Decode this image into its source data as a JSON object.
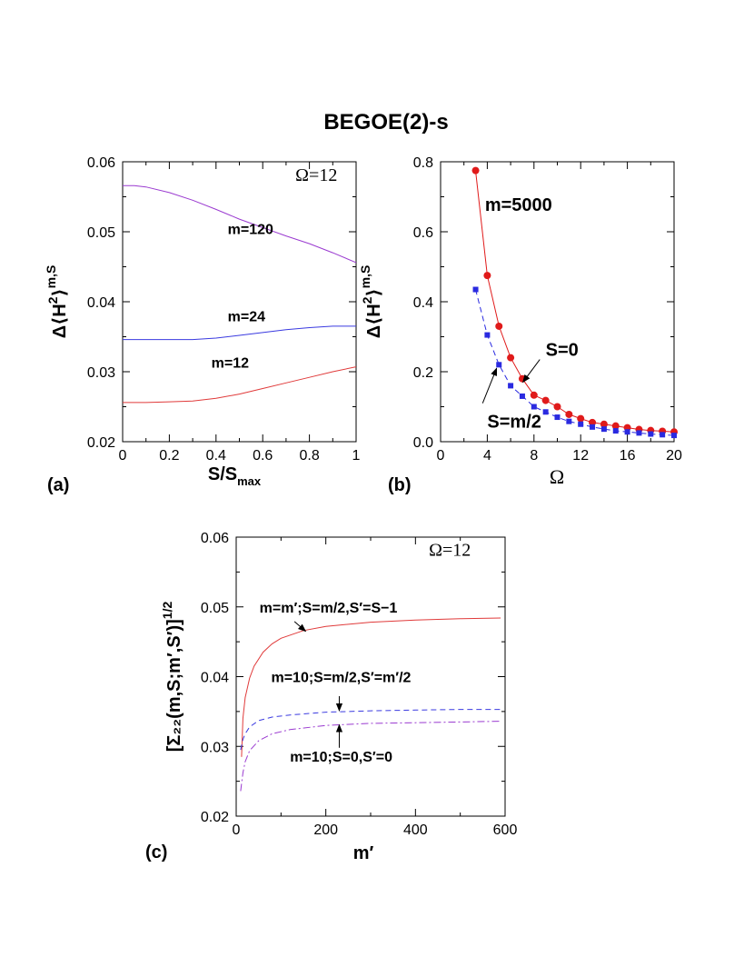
{
  "figure": {
    "title": "BEGOE(2)-s"
  },
  "chart_data": [
    {
      "id": "a",
      "type": "line",
      "panel_label": "(a)",
      "annotation": "Ω=12",
      "ylabel_text": "Δ⟨H",
      "ylabel_sup": "2",
      "ylabel_close": "⟩",
      "ylabel_supsup": "m,S",
      "xlabel_text": "S/S",
      "xlabel_sub": "max",
      "xlim": [
        0,
        1
      ],
      "ylim": [
        0.02,
        0.06
      ],
      "xticks": [
        0,
        0.2,
        0.4,
        0.6,
        0.8,
        1
      ],
      "xticklabels": [
        "0",
        "0.2",
        "0.4",
        "0.6",
        "0.8",
        "1"
      ],
      "yticks": [
        0.02,
        0.03,
        0.04,
        0.05,
        0.06
      ],
      "yticklabels": [
        "0.02",
        "0.03",
        "0.04",
        "0.05",
        "0.06"
      ],
      "series": [
        {
          "name": "m=120",
          "color": "#9a3ad0",
          "style": "solid",
          "x": [
            0,
            0.05,
            0.1,
            0.2,
            0.3,
            0.4,
            0.5,
            0.6,
            0.7,
            0.8,
            0.9,
            1.0
          ],
          "y": [
            0.0566,
            0.0566,
            0.0564,
            0.0556,
            0.0545,
            0.0532,
            0.0518,
            0.0506,
            0.0494,
            0.0483,
            0.047,
            0.0456
          ]
        },
        {
          "name": "m=24",
          "color": "#3a3ae0",
          "style": "solid",
          "x": [
            0,
            0.1,
            0.2,
            0.3,
            0.4,
            0.5,
            0.6,
            0.7,
            0.8,
            0.9,
            1.0
          ],
          "y": [
            0.0346,
            0.0346,
            0.0346,
            0.0346,
            0.0348,
            0.0352,
            0.0356,
            0.036,
            0.0363,
            0.0365,
            0.0365
          ]
        },
        {
          "name": "m=12",
          "color": "#e03a3a",
          "style": "solid",
          "x": [
            0,
            0.1,
            0.2,
            0.3,
            0.4,
            0.5,
            0.6,
            0.7,
            0.8,
            0.9,
            1.0
          ],
          "y": [
            0.0256,
            0.0256,
            0.0257,
            0.0258,
            0.0262,
            0.0268,
            0.0276,
            0.0284,
            0.0292,
            0.03,
            0.0307
          ]
        }
      ],
      "labels": [
        {
          "text": "m=120",
          "x": 0.45,
          "y": 0.0497
        },
        {
          "text": "m=24",
          "x": 0.45,
          "y": 0.0372
        },
        {
          "text": "m=12",
          "x": 0.38,
          "y": 0.0306
        }
      ]
    },
    {
      "id": "b",
      "type": "line",
      "panel_label": "(b)",
      "annotation": "m=5000",
      "ylabel_text": "Δ⟨H",
      "ylabel_sup": "2",
      "ylabel_close": "⟩",
      "ylabel_supsup": "m,S",
      "xlabel_text": "Ω",
      "xlim": [
        0,
        20
      ],
      "ylim": [
        0,
        0.8
      ],
      "xticks": [
        0,
        4,
        8,
        12,
        16,
        20
      ],
      "xticklabels": [
        "0",
        "4",
        "8",
        "12",
        "16",
        "20"
      ],
      "yticks": [
        0,
        0.2,
        0.4,
        0.6,
        0.8
      ],
      "yticklabels": [
        "0.0",
        "0.2",
        "0.4",
        "0.6",
        "0.8"
      ],
      "series": [
        {
          "name": "S=0",
          "color": "#e01a1a",
          "style": "solid",
          "marker": "circle",
          "x": [
            3,
            4,
            5,
            6,
            7,
            8,
            9,
            10,
            11,
            12,
            13,
            14,
            15,
            16,
            17,
            18,
            19,
            20
          ],
          "y": [
            0.775,
            0.475,
            0.33,
            0.24,
            0.18,
            0.133,
            0.118,
            0.1,
            0.078,
            0.066,
            0.055,
            0.05,
            0.045,
            0.04,
            0.035,
            0.032,
            0.03,
            0.028
          ]
        },
        {
          "name": "S=m/2",
          "color": "#2a2ae0",
          "style": "dashed",
          "marker": "square",
          "x": [
            3,
            4,
            5,
            6,
            7,
            8,
            9,
            10,
            11,
            12,
            13,
            14,
            15,
            16,
            17,
            18,
            19,
            20
          ],
          "y": [
            0.435,
            0.305,
            0.22,
            0.16,
            0.13,
            0.1,
            0.085,
            0.07,
            0.058,
            0.05,
            0.042,
            0.036,
            0.031,
            0.028,
            0.025,
            0.022,
            0.02,
            0.018
          ]
        }
      ],
      "labels": [
        {
          "text": "S=0",
          "x": 9.0,
          "y": 0.245
        },
        {
          "text": "S=m/2",
          "x": 4.0,
          "y": 0.04
        }
      ],
      "arrows": [
        {
          "from": [
            8.5,
            0.235
          ],
          "to": [
            7.05,
            0.17
          ]
        },
        {
          "from": [
            3.6,
            0.11
          ],
          "to": [
            4.8,
            0.21
          ]
        }
      ]
    },
    {
      "id": "c",
      "type": "line",
      "panel_label": "(c)",
      "annotation": "Ω=12",
      "ylabel": "[Σ₂₂(m,S;m′,S′)]",
      "ylabel_sup": "1/2",
      "xlabel": "m′",
      "xlim": [
        0,
        600
      ],
      "ylim": [
        0.02,
        0.06
      ],
      "xticks": [
        0,
        200,
        400,
        600
      ],
      "xticklabels": [
        "0",
        "200",
        "400",
        "600"
      ],
      "yticks": [
        0.02,
        0.03,
        0.04,
        0.05,
        0.06
      ],
      "yticklabels": [
        "0.02",
        "0.03",
        "0.04",
        "0.05",
        "0.06"
      ],
      "series": [
        {
          "name": "m=m′;S=m/2,S′=S−1",
          "color": "#e03a3a",
          "style": "solid",
          "x": [
            12,
            15,
            20,
            30,
            40,
            60,
            80,
            100,
            150,
            200,
            300,
            400,
            500,
            590
          ],
          "y": [
            0.0285,
            0.034,
            0.037,
            0.0398,
            0.0415,
            0.0435,
            0.0447,
            0.0455,
            0.0466,
            0.0472,
            0.0478,
            0.0481,
            0.0483,
            0.0484
          ]
        },
        {
          "name": "m=10;S=m/2,S′=m′/2",
          "color": "#3a3ae0",
          "style": "dashed",
          "x": [
            10,
            15,
            20,
            30,
            50,
            80,
            120,
            200,
            300,
            400,
            500,
            590
          ],
          "y": [
            0.0295,
            0.031,
            0.0318,
            0.0328,
            0.0337,
            0.0342,
            0.0345,
            0.0349,
            0.0351,
            0.0352,
            0.0353,
            0.0353
          ]
        },
        {
          "name": "m=10;S=0,S′=0",
          "color": "#9a3ad0",
          "style": "dashdot",
          "x": [
            10,
            15,
            20,
            30,
            50,
            80,
            120,
            200,
            300,
            400,
            500,
            590
          ],
          "y": [
            0.0236,
            0.0262,
            0.0278,
            0.0294,
            0.0308,
            0.0318,
            0.0324,
            0.033,
            0.0333,
            0.0334,
            0.0335,
            0.0336
          ]
        }
      ],
      "labels": [
        {
          "text": "m=m′;S=m/2,S′=S−1",
          "x": 52,
          "y": 0.0492
        },
        {
          "text": "m=10;S=m/2,S′=m′/2",
          "x": 78,
          "y": 0.0392
        },
        {
          "text": "m=10;S=0,S′=0",
          "x": 120,
          "y": 0.0278
        }
      ],
      "arrows": [
        {
          "from": [
            130,
            0.0479
          ],
          "to": [
            155,
            0.0465
          ]
        },
        {
          "from": [
            230,
            0.0372
          ],
          "to": [
            230,
            0.0351
          ]
        },
        {
          "from": [
            230,
            0.0298
          ],
          "to": [
            230,
            0.0331
          ]
        }
      ]
    }
  ]
}
